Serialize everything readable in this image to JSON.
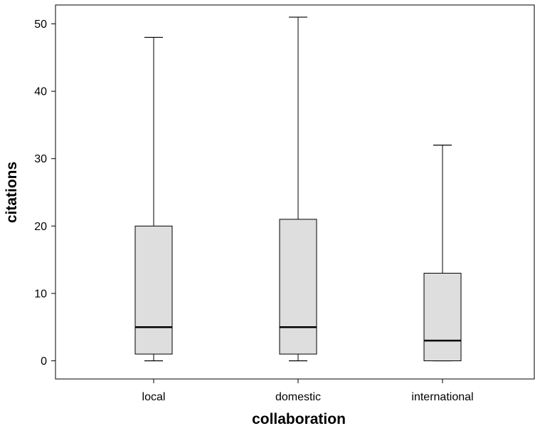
{
  "chart_data": {
    "type": "boxplot",
    "title": "",
    "xlabel": "collaboration",
    "ylabel": "citations",
    "ylim": [
      -2.8,
      55
    ],
    "yticks": [
      0,
      10,
      20,
      30,
      40,
      50
    ],
    "categories": [
      "local",
      "domestic",
      "international"
    ],
    "boxes": [
      {
        "category": "local",
        "min": 0,
        "q1": 1,
        "median": 5,
        "q3": 20,
        "max": 48
      },
      {
        "category": "domestic",
        "min": 0,
        "q1": 1,
        "median": 5,
        "q3": 21,
        "max": 51
      },
      {
        "category": "international",
        "min": 0,
        "q1": 0,
        "median": 3,
        "q3": 13,
        "max": 32
      }
    ],
    "box_fill": "#dedede",
    "line_color": "#000000",
    "grid": false
  }
}
